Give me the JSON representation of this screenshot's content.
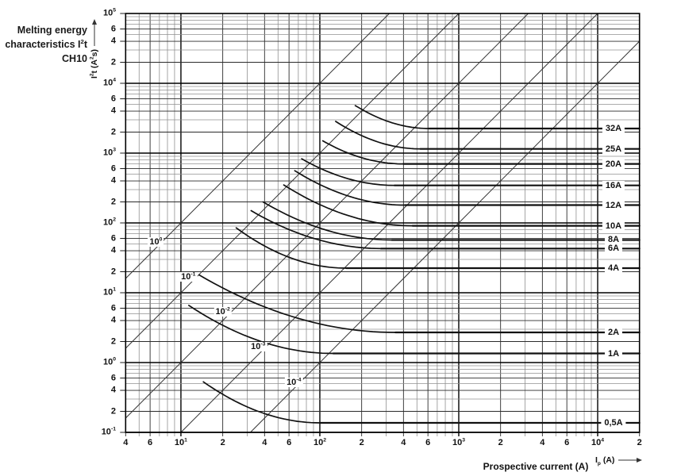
{
  "title": {
    "lines": [
      "Melting energy",
      "characteristics I^2t",
      "CH10"
    ]
  },
  "axes": {
    "x": {
      "label": "Prospective current (A)",
      "symbol_label": "I_p (A)",
      "ticks": [
        {
          "v": 4,
          "l": "4"
        },
        {
          "v": 6,
          "l": "6"
        },
        {
          "v": 10,
          "l": "10^1"
        },
        {
          "v": 20,
          "l": "2"
        },
        {
          "v": 40,
          "l": "4"
        },
        {
          "v": 60,
          "l": "6"
        },
        {
          "v": 100,
          "l": "10^2"
        },
        {
          "v": 200,
          "l": "2"
        },
        {
          "v": 400,
          "l": "4"
        },
        {
          "v": 600,
          "l": "6"
        },
        {
          "v": 1000,
          "l": "10^3"
        },
        {
          "v": 2000,
          "l": "2"
        },
        {
          "v": 4000,
          "l": "4"
        },
        {
          "v": 6000,
          "l": "6"
        },
        {
          "v": 10000,
          "l": "10^4"
        },
        {
          "v": 20000,
          "l": "2"
        }
      ]
    },
    "y": {
      "label": "I^2t (A^2s)",
      "ticks": [
        {
          "v": 100000,
          "l": "10^5"
        },
        {
          "v": 60000,
          "l": "6"
        },
        {
          "v": 40000,
          "l": "4"
        },
        {
          "v": 20000,
          "l": "2"
        },
        {
          "v": 10000,
          "l": "10^4"
        },
        {
          "v": 6000,
          "l": "6"
        },
        {
          "v": 4000,
          "l": "4"
        },
        {
          "v": 2000,
          "l": "2"
        },
        {
          "v": 1000,
          "l": "10^3"
        },
        {
          "v": 600,
          "l": "6"
        },
        {
          "v": 400,
          "l": "4"
        },
        {
          "v": 200,
          "l": "2"
        },
        {
          "v": 100,
          "l": "10^2"
        },
        {
          "v": 60,
          "l": "6"
        },
        {
          "v": 40,
          "l": "4"
        },
        {
          "v": 20,
          "l": "2"
        },
        {
          "v": 10,
          "l": "10^1"
        },
        {
          "v": 6,
          "l": "6"
        },
        {
          "v": 4,
          "l": "4"
        },
        {
          "v": 2,
          "l": "2"
        },
        {
          "v": 1,
          "l": "10^0"
        },
        {
          "v": 0.6,
          "l": "6"
        },
        {
          "v": 0.4,
          "l": "4"
        },
        {
          "v": 0.2,
          "l": "2"
        },
        {
          "v": 0.1,
          "l": "10^-1"
        }
      ]
    }
  },
  "chart_data": {
    "type": "line",
    "title": "Melting energy characteristics I²t CH10",
    "xlabel": "Prospective current (A)",
    "ylabel": "I²t (A²s)",
    "xlim": [
      4,
      20000
    ],
    "ylim": [
      0.1,
      100000
    ],
    "log_x": true,
    "log_y": true,
    "grid": "log-log, minor lines at mantissas 2-9, darker at 2/4/6 and decades",
    "time_lines_note": "diagonal lines of constant melting time t (seconds); I²t = t·I²",
    "time_lines": [
      {
        "label": "10^0",
        "t_s": 1,
        "label_at": [
          6.6,
          53
        ]
      },
      {
        "label": "10^-1",
        "t_s": 0.1,
        "label_at": [
          11.3,
          16.8
        ]
      },
      {
        "label": "10^-2",
        "t_s": 0.01,
        "label_at": [
          20,
          5.3
        ]
      },
      {
        "label": "10^-3",
        "t_s": 0.001,
        "label_at": [
          36,
          1.67
        ]
      },
      {
        "label": "10^-4",
        "t_s": 0.0001,
        "label_at": [
          65,
          0.52
        ]
      }
    ],
    "series_note": "fuse melting I2t curves: steep fall from start point, flattening to a constant minimum I2t plateau that runs to the right edge (20 kA); label sits on the plateau",
    "series": [
      {
        "name": "0,5A",
        "rating_A": 0.5,
        "start": [
          14.5,
          0.53
        ],
        "knee_current": 100,
        "plateau_i2t": 0.137
      },
      {
        "name": "1A",
        "rating_A": 1,
        "start": [
          11.4,
          6.6
        ],
        "knee_current": 125,
        "plateau_i2t": 1.35
      },
      {
        "name": "2A",
        "rating_A": 2,
        "start": [
          13.5,
          18
        ],
        "knee_current": 350,
        "plateau_i2t": 2.7
      },
      {
        "name": "4A",
        "rating_A": 4,
        "start": [
          25,
          85
        ],
        "knee_current": 155,
        "plateau_i2t": 22.5
      },
      {
        "name": "6A",
        "rating_A": 6,
        "start": [
          32,
          150
        ],
        "knee_current": 275,
        "plateau_i2t": 43
      },
      {
        "name": "8A",
        "rating_A": 8,
        "start": [
          39,
          200
        ],
        "knee_current": 330,
        "plateau_i2t": 57
      },
      {
        "name": "10A",
        "rating_A": 10,
        "start": [
          55,
          350
        ],
        "knee_current": 465,
        "plateau_i2t": 91
      },
      {
        "name": "12A",
        "rating_A": 12,
        "start": [
          66,
          560
        ],
        "knee_current": 410,
        "plateau_i2t": 180
      },
      {
        "name": "16A",
        "rating_A": 16,
        "start": [
          74,
          830
        ],
        "knee_current": 345,
        "plateau_i2t": 345
      },
      {
        "name": "20A",
        "rating_A": 20,
        "start": [
          105,
          1500
        ],
        "knee_current": 400,
        "plateau_i2t": 700
      },
      {
        "name": "25A",
        "rating_A": 25,
        "start": [
          130,
          2850
        ],
        "knee_current": 530,
        "plateau_i2t": 1150
      },
      {
        "name": "32A",
        "rating_A": 32,
        "start": [
          180,
          4800
        ],
        "knee_current": 610,
        "plateau_i2t": 2250
      }
    ],
    "colors": {
      "curve": "#111111",
      "grid_major": "#000000",
      "grid_medium": "#2b2b2b",
      "grid_light": "#909090",
      "time_line": "#333333"
    }
  }
}
